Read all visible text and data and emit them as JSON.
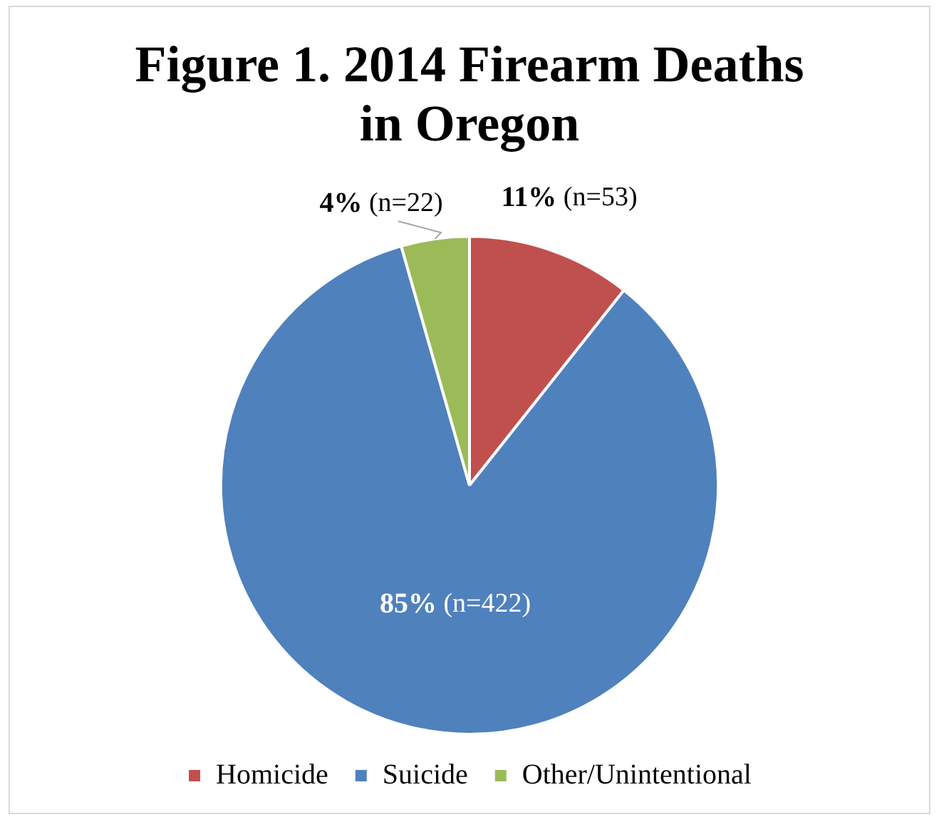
{
  "chart_data": {
    "type": "pie",
    "title": "Figure 1. 2014 Firearm Deaths in Oregon",
    "categories": [
      "Homicide",
      "Suicide",
      "Other/Unintentional"
    ],
    "values": [
      53,
      422,
      22
    ],
    "colors": [
      "#c0504d",
      "#4f81bd",
      "#9bbb59"
    ],
    "value_labels": [
      "11% (n=53)",
      "85% (n=422)",
      "4% (n=22)"
    ],
    "legend": "bottom"
  }
}
